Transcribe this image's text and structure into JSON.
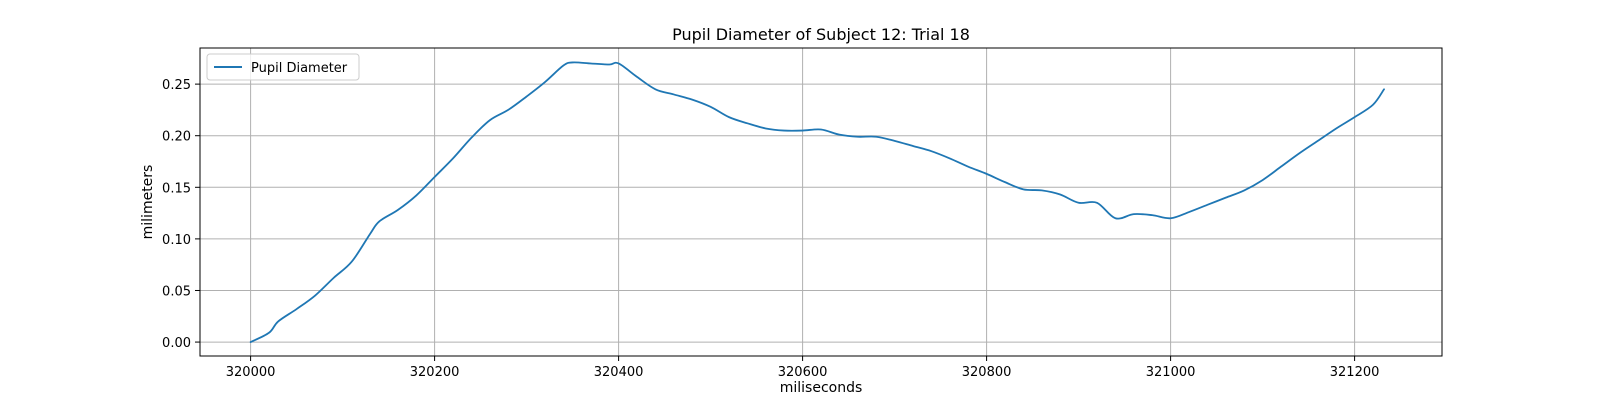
{
  "chart_data": {
    "type": "line",
    "title": "Pupil Diameter of Subject 12: Trial 18",
    "xlabel": "miliseconds",
    "ylabel": "milimeters",
    "xlim": [
      319945,
      321295
    ],
    "ylim": [
      -0.0135,
      0.285
    ],
    "x_ticks": [
      320000,
      320200,
      320400,
      320600,
      320800,
      321000,
      321200
    ],
    "x_tick_labels": [
      "320000",
      "320200",
      "320400",
      "320600",
      "320800",
      "321000",
      "321200"
    ],
    "y_ticks": [
      0.0,
      0.05,
      0.1,
      0.15,
      0.2,
      0.25
    ],
    "y_tick_labels": [
      "0.00",
      "0.05",
      "0.10",
      "0.15",
      "0.20",
      "0.25"
    ],
    "grid": true,
    "legend_position": "top-left",
    "colors": {
      "series": "#1f77b4",
      "grid": "#b0b0b0",
      "frame": "#000000"
    },
    "series": [
      {
        "name": "Pupil Diameter",
        "x": [
          320000,
          320020,
          320030,
          320050,
          320070,
          320090,
          320110,
          320130,
          320140,
          320160,
          320180,
          320200,
          320220,
          320240,
          320260,
          320280,
          320300,
          320320,
          320340,
          320350,
          320370,
          320390,
          320400,
          320420,
          320440,
          320460,
          320480,
          320500,
          320520,
          320540,
          320560,
          320580,
          320600,
          320620,
          320640,
          320660,
          320680,
          320700,
          320720,
          320740,
          320760,
          320780,
          320800,
          320820,
          320840,
          320860,
          320880,
          320900,
          320920,
          320940,
          320960,
          320980,
          321000,
          321020,
          321040,
          321060,
          321080,
          321100,
          321120,
          321140,
          321160,
          321180,
          321200,
          321220,
          321232
        ],
        "values": [
          0.0,
          0.009,
          0.02,
          0.032,
          0.045,
          0.062,
          0.078,
          0.105,
          0.117,
          0.128,
          0.142,
          0.16,
          0.178,
          0.198,
          0.215,
          0.225,
          0.238,
          0.252,
          0.268,
          0.271,
          0.27,
          0.269,
          0.27,
          0.257,
          0.245,
          0.24,
          0.235,
          0.228,
          0.218,
          0.212,
          0.207,
          0.205,
          0.205,
          0.206,
          0.201,
          0.199,
          0.199,
          0.195,
          0.19,
          0.185,
          0.178,
          0.17,
          0.163,
          0.155,
          0.148,
          0.147,
          0.143,
          0.135,
          0.135,
          0.12,
          0.124,
          0.123,
          0.12,
          0.126,
          0.133,
          0.14,
          0.147,
          0.157,
          0.17,
          0.183,
          0.195,
          0.207,
          0.218,
          0.23,
          0.245
        ]
      }
    ]
  }
}
